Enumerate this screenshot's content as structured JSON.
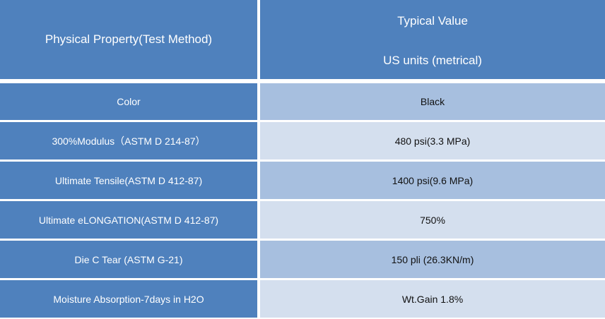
{
  "header": {
    "property_label": "Physical Property(Test Method)",
    "value_label_line1": "Typical Value",
    "value_label_line2": "US units (metrical)"
  },
  "rows": [
    {
      "property": "Color",
      "value": "Black"
    },
    {
      "property": "300%Modulus（ASTM D 214-87）",
      "value": "480 psi(3.3 MPa)"
    },
    {
      "property": "Ultimate Tensile(ASTM D 412-87)",
      "value": "1400 psi(9.6 MPa)"
    },
    {
      "property": "Ultimate eLONGATION(ASTM D 412-87)",
      "value": "750%"
    },
    {
      "property": "Die C Tear (ASTM G-21)",
      "value": "150 pli (26.3KN/m)"
    },
    {
      "property": "Moisture Absorption-7days in H2O",
      "value": "Wt.Gain 1.8%"
    }
  ]
}
